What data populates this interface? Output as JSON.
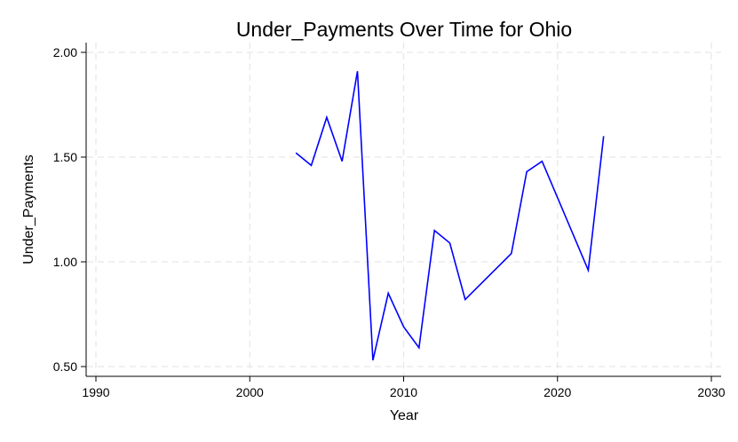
{
  "chart_data": {
    "type": "line",
    "title": "Under_Payments Over Time for Ohio",
    "xlabel": "Year",
    "ylabel": "Under_Payments",
    "xlim": [
      1990,
      2030
    ],
    "ylim": [
      0.5,
      2.0
    ],
    "x_ticks": [
      1990,
      2000,
      2010,
      2020,
      2030
    ],
    "y_ticks": [
      "0.50",
      "1.00",
      "1.50",
      "2.00"
    ],
    "grid": true,
    "series": [
      {
        "color": "#0000ff",
        "x": [
          2003,
          2004,
          2005,
          2006,
          2007,
          2008,
          2009,
          2010,
          2011,
          2012,
          2013,
          2014,
          2017,
          2018,
          2019,
          2022,
          2023
        ],
        "y": [
          1.52,
          1.46,
          1.69,
          1.48,
          1.91,
          0.53,
          0.85,
          0.69,
          0.59,
          1.15,
          1.09,
          0.82,
          1.04,
          1.43,
          1.48,
          0.96,
          1.6
        ]
      }
    ]
  }
}
